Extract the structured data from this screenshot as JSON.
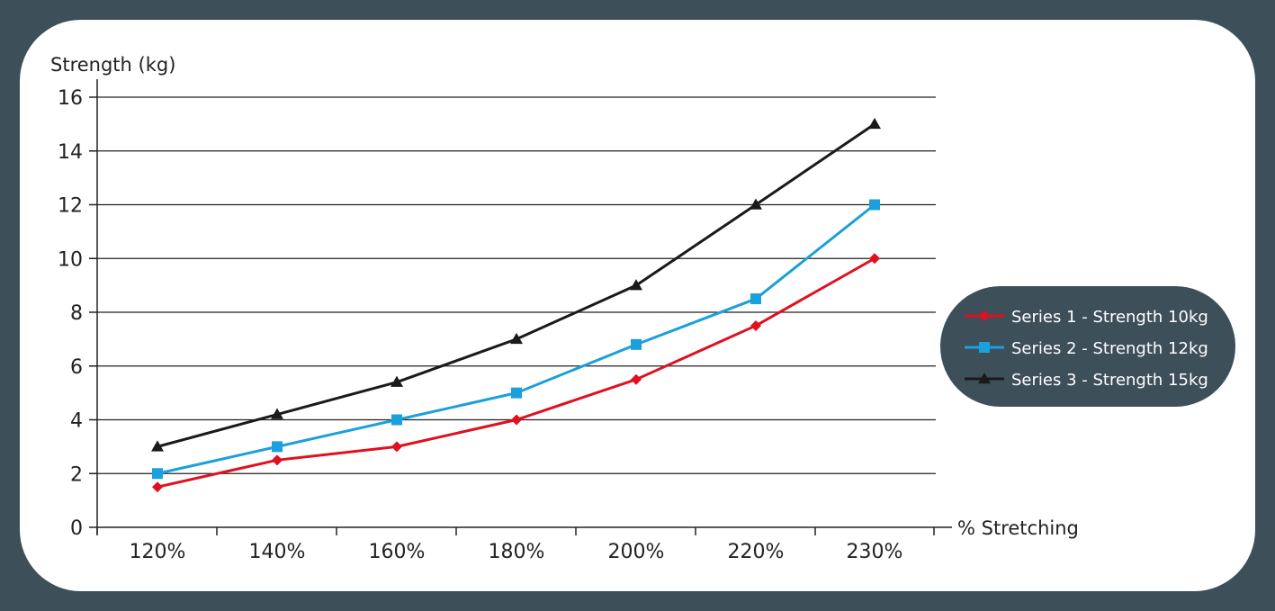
{
  "chart_data": {
    "type": "line",
    "title": "",
    "ylabel": "Strength (kg)",
    "xlabel": "% Stretching",
    "categories": [
      "120%",
      "140%",
      "160%",
      "180%",
      "200%",
      "220%",
      "230%"
    ],
    "ylim": [
      0,
      16
    ],
    "yticks": [
      0,
      2,
      4,
      6,
      8,
      10,
      12,
      14,
      16
    ],
    "grid": true,
    "legend_position": "right",
    "series": [
      {
        "name": "Series 1 - Strength 10kg",
        "color": "#e0101e",
        "marker": "diamond",
        "values": [
          1.5,
          2.5,
          3,
          4,
          5.5,
          7.5,
          10
        ]
      },
      {
        "name": "Series 2 - Strength 12kg",
        "color": "#1ba0dc",
        "marker": "square",
        "values": [
          2,
          3,
          4,
          5,
          6.8,
          8.5,
          12
        ]
      },
      {
        "name": "Series 3 - Strength 15kg",
        "color": "#1a1a1a",
        "marker": "triangle",
        "values": [
          3,
          4.2,
          5.4,
          7,
          9,
          12,
          15
        ]
      }
    ]
  },
  "colors": {
    "frame": "#3d4f59",
    "legend_bg": "#3d4f59",
    "background": "#ffffff"
  }
}
